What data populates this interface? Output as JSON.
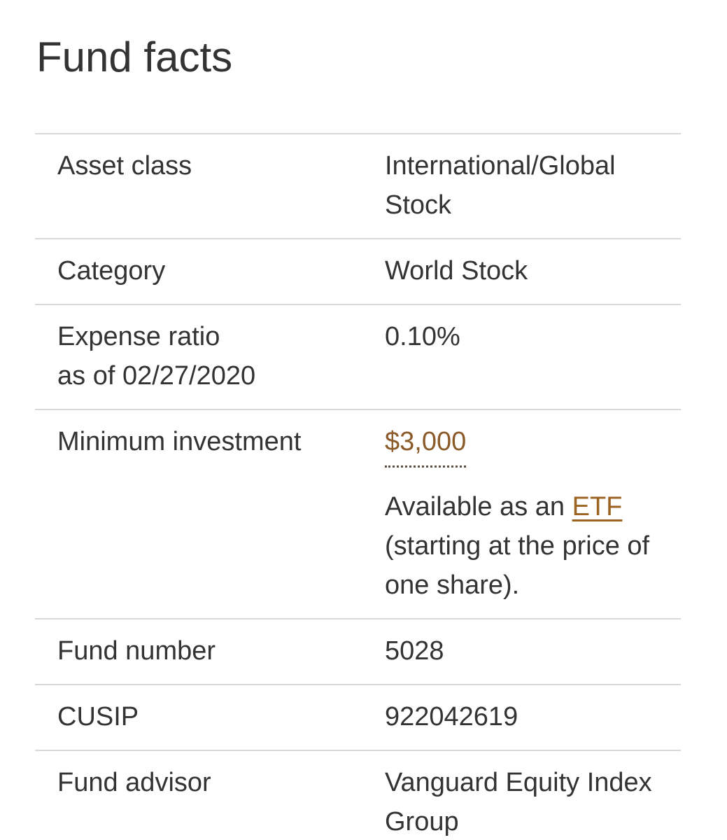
{
  "page": {
    "title": "Fund facts"
  },
  "colors": {
    "text": "#333333",
    "link_brown": "#9c6220",
    "link_dotted_brown": "#8a5a28",
    "divider": "#d8d8d8"
  },
  "table": {
    "rows": [
      {
        "label": "Asset class",
        "value": "International/Global Stock"
      },
      {
        "label": "Category",
        "value": "World Stock"
      },
      {
        "label": "Expense ratio",
        "label_sub": "as of 02/27/2020",
        "value": "0.10%"
      },
      {
        "label": "Minimum investment",
        "value_link": "$3,000",
        "extra_prefix": "Available as an ",
        "extra_link": "ETF",
        "extra_suffix": " (starting at the price of one share)."
      },
      {
        "label": "Fund number",
        "value": "5028"
      },
      {
        "label": "CUSIP",
        "value": "922042619"
      },
      {
        "label": "Fund advisor",
        "value": "Vanguard Equity Index Group"
      }
    ]
  }
}
